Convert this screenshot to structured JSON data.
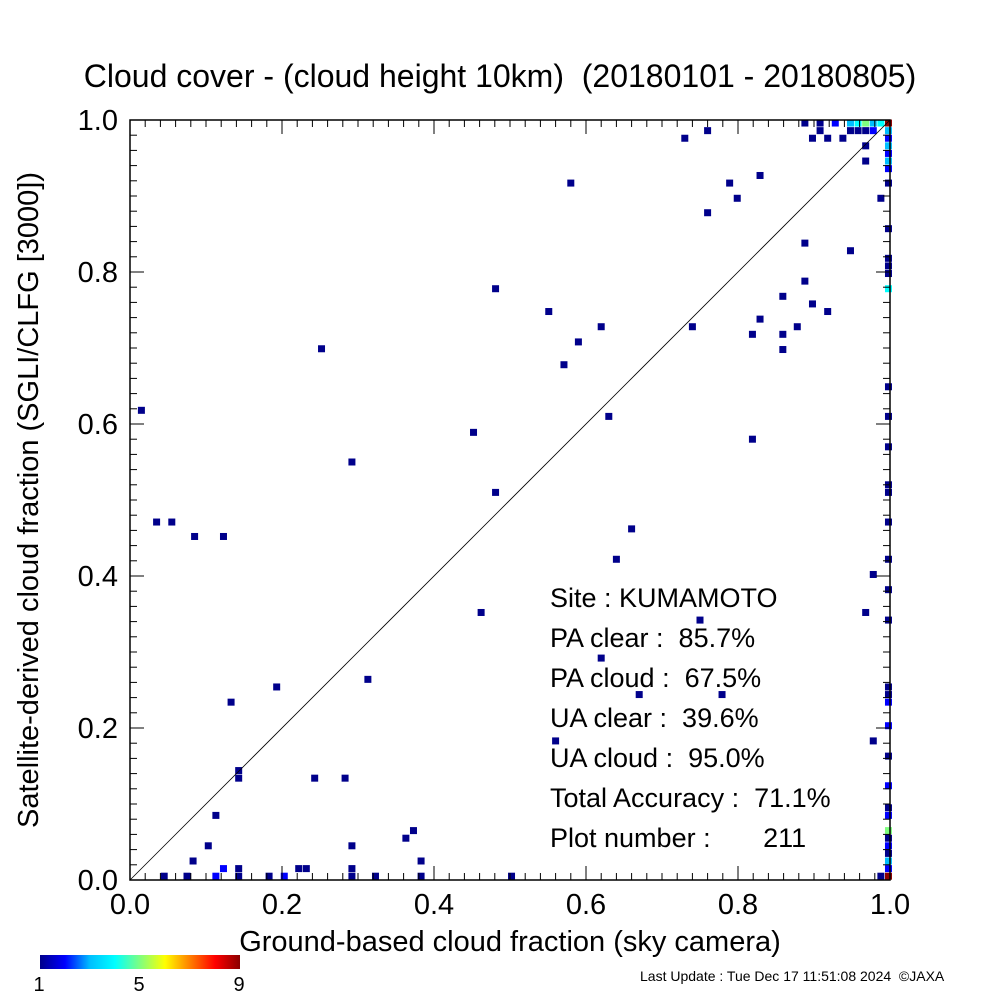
{
  "title": "Cloud cover - (cloud height 10km)  (20180101 - 20180805)",
  "chart_data": {
    "type": "heatmap",
    "xlabel": "Ground-based cloud fraction (sky camera)",
    "ylabel": "Satellite-derived cloud fraction (SGLI/CLFG [3000])",
    "xlim": [
      0.0,
      1.0
    ],
    "ylim": [
      0.0,
      1.0
    ],
    "x_ticks": [
      "0.0",
      "0.2",
      "0.4",
      "0.6",
      "0.8",
      "1.0"
    ],
    "y_ticks": [
      "0.0",
      "0.2",
      "0.4",
      "0.6",
      "0.8",
      "1.0"
    ],
    "reference_line": "y = x",
    "colorbar": {
      "min": 1,
      "max": 9,
      "ticks": [
        "1",
        "5",
        "9"
      ],
      "colors": [
        "#00008b",
        "#0000ff",
        "#00bfff",
        "#00ffff",
        "#7fff7f",
        "#ffff00",
        "#ff7f00",
        "#ff0000",
        "#8b0000"
      ]
    },
    "points": [
      {
        "x": 0.015,
        "y": 0.618,
        "c": 1
      },
      {
        "x": 0.035,
        "y": 0.471,
        "c": 1
      },
      {
        "x": 0.055,
        "y": 0.471,
        "c": 1
      },
      {
        "x": 0.085,
        "y": 0.452,
        "c": 1
      },
      {
        "x": 0.123,
        "y": 0.452,
        "c": 1
      },
      {
        "x": 0.133,
        "y": 0.234,
        "c": 1
      },
      {
        "x": 0.193,
        "y": 0.254,
        "c": 1
      },
      {
        "x": 0.252,
        "y": 0.699,
        "c": 1
      },
      {
        "x": 0.292,
        "y": 0.55,
        "c": 1
      },
      {
        "x": 0.313,
        "y": 0.264,
        "c": 1
      },
      {
        "x": 0.143,
        "y": 0.144,
        "c": 1
      },
      {
        "x": 0.143,
        "y": 0.134,
        "c": 1
      },
      {
        "x": 0.113,
        "y": 0.085,
        "c": 1
      },
      {
        "x": 0.103,
        "y": 0.045,
        "c": 1
      },
      {
        "x": 0.083,
        "y": 0.025,
        "c": 1
      },
      {
        "x": 0.243,
        "y": 0.134,
        "c": 1
      },
      {
        "x": 0.283,
        "y": 0.134,
        "c": 1
      },
      {
        "x": 0.292,
        "y": 0.045,
        "c": 1
      },
      {
        "x": 0.363,
        "y": 0.055,
        "c": 1
      },
      {
        "x": 0.373,
        "y": 0.065,
        "c": 1
      },
      {
        "x": 0.383,
        "y": 0.025,
        "c": 1
      },
      {
        "x": 0.292,
        "y": 0.015,
        "c": 1
      },
      {
        "x": 0.222,
        "y": 0.015,
        "c": 1
      },
      {
        "x": 0.232,
        "y": 0.015,
        "c": 1
      },
      {
        "x": 0.123,
        "y": 0.015,
        "c": 2
      },
      {
        "x": 0.143,
        "y": 0.015,
        "c": 1
      },
      {
        "x": 0.045,
        "y": 0.005,
        "c": 1
      },
      {
        "x": 0.075,
        "y": 0.005,
        "c": 1
      },
      {
        "x": 0.113,
        "y": 0.005,
        "c": 2
      },
      {
        "x": 0.143,
        "y": 0.005,
        "c": 1
      },
      {
        "x": 0.183,
        "y": 0.005,
        "c": 1
      },
      {
        "x": 0.203,
        "y": 0.005,
        "c": 2
      },
      {
        "x": 0.292,
        "y": 0.005,
        "c": 1
      },
      {
        "x": 0.323,
        "y": 0.005,
        "c": 1
      },
      {
        "x": 0.383,
        "y": 0.005,
        "c": 1
      },
      {
        "x": 0.502,
        "y": 0.005,
        "c": 1
      },
      {
        "x": 0.452,
        "y": 0.589,
        "c": 1
      },
      {
        "x": 0.481,
        "y": 0.51,
        "c": 1
      },
      {
        "x": 0.481,
        "y": 0.778,
        "c": 1
      },
      {
        "x": 0.462,
        "y": 0.352,
        "c": 1
      },
      {
        "x": 0.551,
        "y": 0.748,
        "c": 1
      },
      {
        "x": 0.571,
        "y": 0.678,
        "c": 1
      },
      {
        "x": 0.58,
        "y": 0.917,
        "c": 1
      },
      {
        "x": 0.59,
        "y": 0.708,
        "c": 1
      },
      {
        "x": 0.62,
        "y": 0.728,
        "c": 1
      },
      {
        "x": 0.63,
        "y": 0.61,
        "c": 1
      },
      {
        "x": 0.66,
        "y": 0.462,
        "c": 1
      },
      {
        "x": 0.64,
        "y": 0.422,
        "c": 1
      },
      {
        "x": 0.62,
        "y": 0.292,
        "c": 1
      },
      {
        "x": 0.67,
        "y": 0.244,
        "c": 1
      },
      {
        "x": 0.75,
        "y": 0.342,
        "c": 1
      },
      {
        "x": 0.779,
        "y": 0.244,
        "c": 1
      },
      {
        "x": 0.56,
        "y": 0.183,
        "c": 1
      },
      {
        "x": 0.74,
        "y": 0.728,
        "c": 1
      },
      {
        "x": 0.73,
        "y": 0.976,
        "c": 1
      },
      {
        "x": 0.76,
        "y": 0.986,
        "c": 1
      },
      {
        "x": 0.76,
        "y": 0.878,
        "c": 1
      },
      {
        "x": 0.789,
        "y": 0.917,
        "c": 1
      },
      {
        "x": 0.799,
        "y": 0.897,
        "c": 1
      },
      {
        "x": 0.829,
        "y": 0.927,
        "c": 1
      },
      {
        "x": 0.819,
        "y": 0.718,
        "c": 1
      },
      {
        "x": 0.829,
        "y": 0.738,
        "c": 1
      },
      {
        "x": 0.819,
        "y": 0.58,
        "c": 1
      },
      {
        "x": 0.859,
        "y": 0.768,
        "c": 1
      },
      {
        "x": 0.859,
        "y": 0.718,
        "c": 1
      },
      {
        "x": 0.859,
        "y": 0.698,
        "c": 1
      },
      {
        "x": 0.878,
        "y": 0.728,
        "c": 1
      },
      {
        "x": 0.888,
        "y": 0.838,
        "c": 1
      },
      {
        "x": 0.888,
        "y": 0.788,
        "c": 1
      },
      {
        "x": 0.898,
        "y": 0.758,
        "c": 1
      },
      {
        "x": 0.918,
        "y": 0.748,
        "c": 1
      },
      {
        "x": 0.948,
        "y": 0.828,
        "c": 1
      },
      {
        "x": 0.968,
        "y": 0.946,
        "c": 1
      },
      {
        "x": 0.968,
        "y": 0.966,
        "c": 1
      },
      {
        "x": 0.988,
        "y": 0.897,
        "c": 1
      },
      {
        "x": 0.978,
        "y": 0.402,
        "c": 1
      },
      {
        "x": 0.968,
        "y": 0.352,
        "c": 1
      },
      {
        "x": 0.978,
        "y": 0.183,
        "c": 1
      },
      {
        "x": 0.888,
        "y": 0.996,
        "c": 1
      },
      {
        "x": 0.898,
        "y": 0.976,
        "c": 1
      },
      {
        "x": 0.908,
        "y": 0.996,
        "c": 1
      },
      {
        "x": 0.908,
        "y": 0.986,
        "c": 1
      },
      {
        "x": 0.918,
        "y": 0.976,
        "c": 1
      },
      {
        "x": 0.928,
        "y": 0.996,
        "c": 2
      },
      {
        "x": 0.938,
        "y": 0.976,
        "c": 1
      },
      {
        "x": 0.948,
        "y": 0.986,
        "c": 1
      },
      {
        "x": 0.948,
        "y": 0.996,
        "c": 3
      },
      {
        "x": 0.958,
        "y": 0.996,
        "c": 4
      },
      {
        "x": 0.958,
        "y": 0.986,
        "c": 1
      },
      {
        "x": 0.968,
        "y": 0.996,
        "c": 5
      },
      {
        "x": 0.968,
        "y": 0.986,
        "c": 1
      },
      {
        "x": 0.978,
        "y": 0.996,
        "c": 3
      },
      {
        "x": 0.978,
        "y": 0.986,
        "c": 2
      },
      {
        "x": 0.988,
        "y": 0.996,
        "c": 4
      },
      {
        "x": 0.998,
        "y": 0.996,
        "c": 9
      },
      {
        "x": 0.998,
        "y": 0.986,
        "c": 3
      },
      {
        "x": 0.998,
        "y": 0.976,
        "c": 2
      },
      {
        "x": 0.998,
        "y": 0.966,
        "c": 3
      },
      {
        "x": 0.998,
        "y": 0.956,
        "c": 2
      },
      {
        "x": 0.998,
        "y": 0.946,
        "c": 3
      },
      {
        "x": 0.998,
        "y": 0.936,
        "c": 2
      },
      {
        "x": 0.998,
        "y": 0.917,
        "c": 1
      },
      {
        "x": 0.998,
        "y": 0.857,
        "c": 1
      },
      {
        "x": 0.998,
        "y": 0.818,
        "c": 1
      },
      {
        "x": 0.998,
        "y": 0.808,
        "c": 1
      },
      {
        "x": 0.998,
        "y": 0.798,
        "c": 1
      },
      {
        "x": 0.998,
        "y": 0.778,
        "c": 4
      },
      {
        "x": 0.998,
        "y": 0.649,
        "c": 1
      },
      {
        "x": 0.998,
        "y": 0.61,
        "c": 1
      },
      {
        "x": 0.998,
        "y": 0.57,
        "c": 1
      },
      {
        "x": 0.998,
        "y": 0.52,
        "c": 1
      },
      {
        "x": 0.998,
        "y": 0.51,
        "c": 1
      },
      {
        "x": 0.998,
        "y": 0.471,
        "c": 1
      },
      {
        "x": 0.998,
        "y": 0.422,
        "c": 1
      },
      {
        "x": 0.998,
        "y": 0.382,
        "c": 1
      },
      {
        "x": 0.998,
        "y": 0.342,
        "c": 1
      },
      {
        "x": 0.998,
        "y": 0.254,
        "c": 1
      },
      {
        "x": 0.998,
        "y": 0.244,
        "c": 1
      },
      {
        "x": 0.998,
        "y": 0.234,
        "c": 2
      },
      {
        "x": 0.998,
        "y": 0.203,
        "c": 2
      },
      {
        "x": 0.998,
        "y": 0.163,
        "c": 1
      },
      {
        "x": 0.998,
        "y": 0.124,
        "c": 2
      },
      {
        "x": 0.998,
        "y": 0.095,
        "c": 1
      },
      {
        "x": 0.998,
        "y": 0.085,
        "c": 2
      },
      {
        "x": 0.998,
        "y": 0.065,
        "c": 5
      },
      {
        "x": 0.998,
        "y": 0.055,
        "c": 1
      },
      {
        "x": 0.998,
        "y": 0.045,
        "c": 2
      },
      {
        "x": 0.998,
        "y": 0.035,
        "c": 1
      },
      {
        "x": 0.998,
        "y": 0.025,
        "c": 3
      },
      {
        "x": 0.998,
        "y": 0.015,
        "c": 2
      },
      {
        "x": 0.998,
        "y": 0.005,
        "c": 9
      },
      {
        "x": 0.988,
        "y": 0.005,
        "c": 1
      }
    ]
  },
  "stats": [
    "Site : KUMAMOTO",
    "PA clear :  85.7%",
    "PA cloud :  67.5%",
    "UA clear :  39.6%",
    "UA cloud :  95.0%",
    "Total Accuracy :  71.1%",
    "Plot number :       211"
  ],
  "footer": "Last Update : Tue Dec 17 11:51:08 2024  ©JAXA"
}
